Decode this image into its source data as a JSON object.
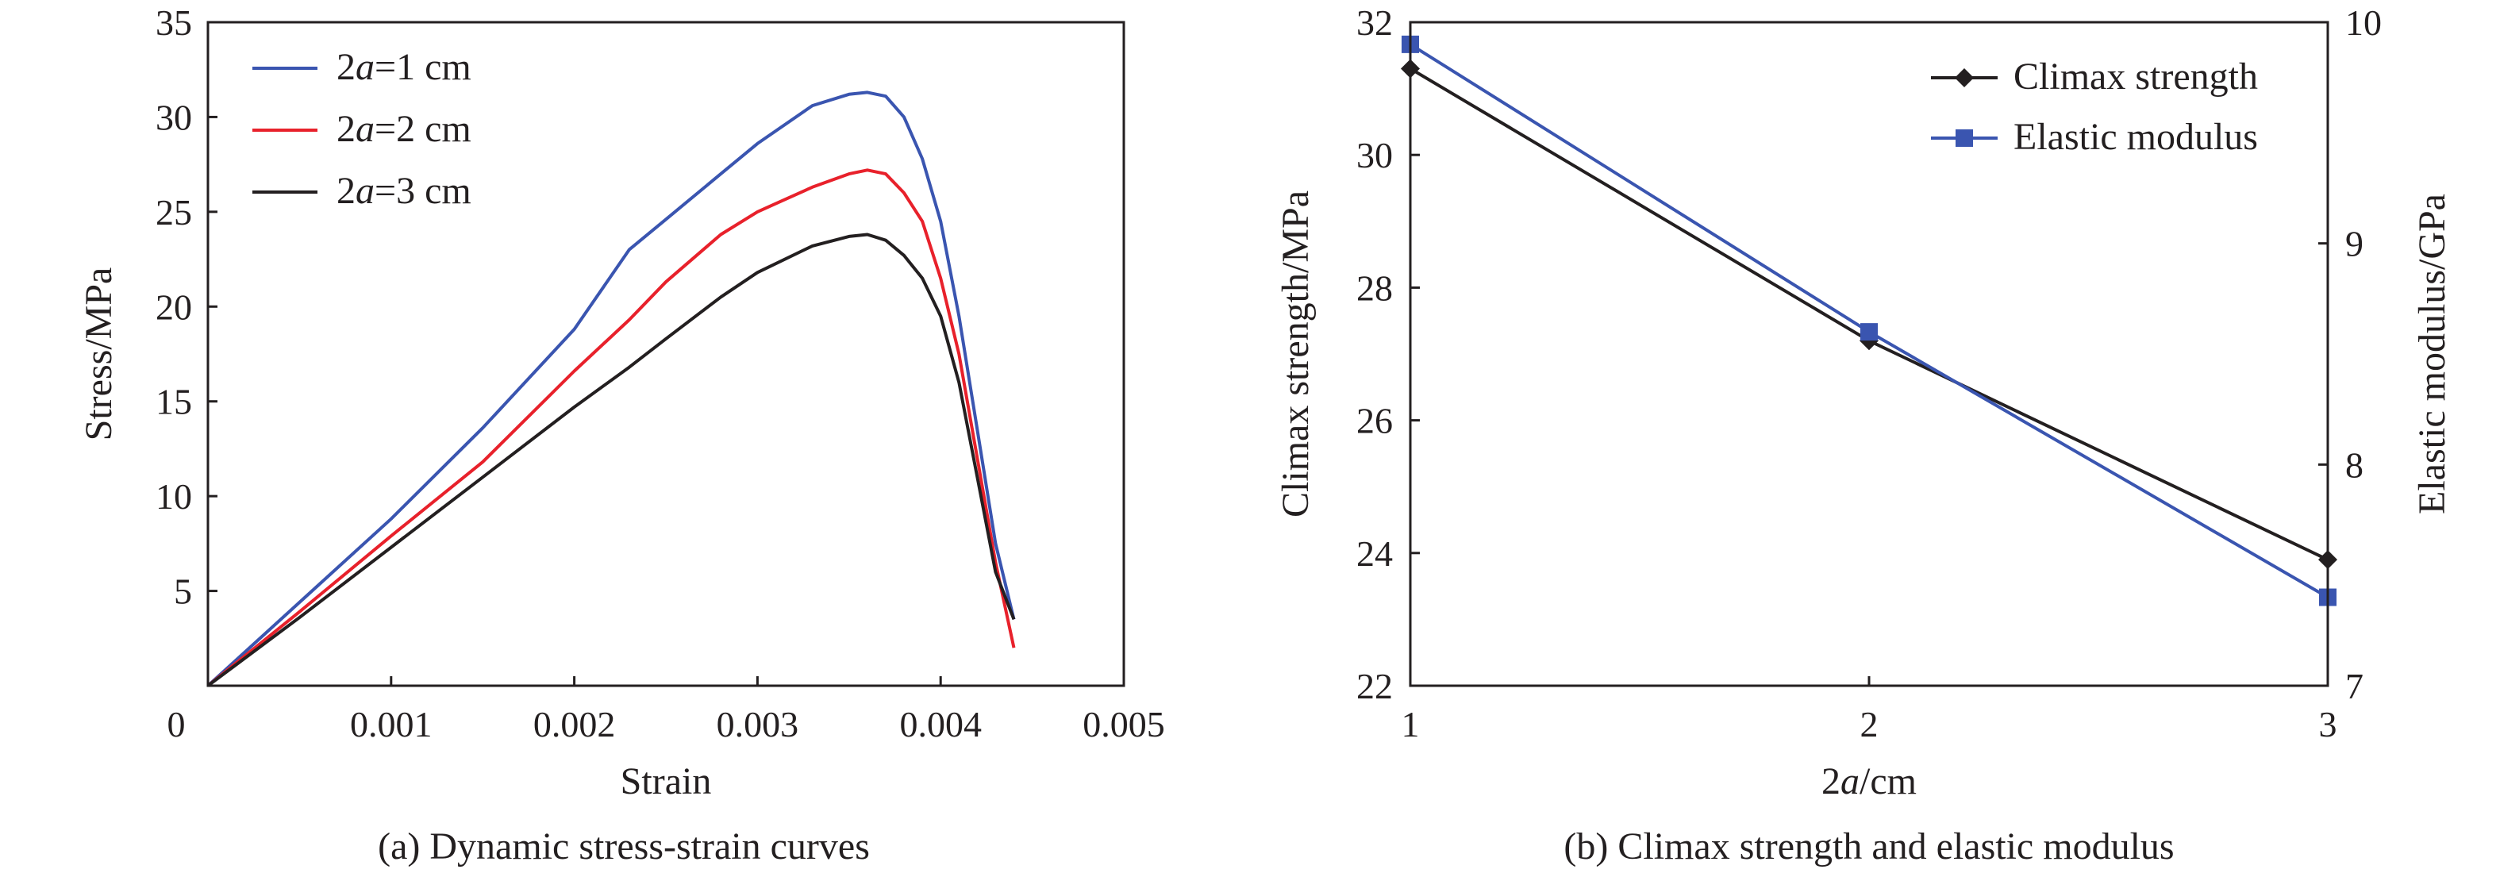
{
  "chart_data": [
    {
      "id": "a",
      "type": "line",
      "caption": "(a) Dynamic stress-strain curves",
      "xlabel": "Strain",
      "ylabel": "Stress/MPa",
      "xlim": [
        0,
        0.005
      ],
      "ylim": [
        0,
        35
      ],
      "xticks": [
        "0",
        "0.001",
        "0.002",
        "0.003",
        "0.004",
        "0.005"
      ],
      "yticks": [
        "5",
        "10",
        "15",
        "20",
        "25",
        "30",
        "35"
      ],
      "legend_position": "top-left",
      "series": [
        {
          "name": "2a=1 cm",
          "name_parts": [
            "2",
            "a",
            "=1 cm"
          ],
          "color": "#3a55b0",
          "x": [
            0,
            0.0005,
            0.001,
            0.0015,
            0.002,
            0.0023,
            0.0025,
            0.0028,
            0.003,
            0.0033,
            0.0035,
            0.0036,
            0.0037,
            0.0038,
            0.0039,
            0.004,
            0.0041,
            0.0042,
            0.0043,
            0.0044
          ],
          "y": [
            0,
            4.4,
            8.8,
            13.6,
            18.8,
            23.0,
            24.6,
            27.0,
            28.6,
            30.6,
            31.2,
            31.3,
            31.1,
            30.0,
            27.8,
            24.5,
            19.5,
            13.5,
            7.5,
            3.5
          ]
        },
        {
          "name": "2a=2 cm",
          "name_parts": [
            "2",
            "a",
            "=2 cm"
          ],
          "color": "#e8212b",
          "x": [
            0,
            0.0005,
            0.001,
            0.0015,
            0.002,
            0.0023,
            0.0025,
            0.0028,
            0.003,
            0.0033,
            0.0035,
            0.0036,
            0.0037,
            0.0038,
            0.0039,
            0.004,
            0.0041,
            0.0042,
            0.0043,
            0.0044
          ],
          "y": [
            0,
            3.9,
            7.9,
            11.8,
            16.6,
            19.3,
            21.3,
            23.8,
            25.0,
            26.3,
            27.0,
            27.2,
            27.0,
            26.0,
            24.5,
            21.5,
            17.5,
            12.0,
            6.5,
            2.0
          ]
        },
        {
          "name": "2a=3 cm",
          "name_parts": [
            "2",
            "a",
            "=3 cm"
          ],
          "color": "#231f20",
          "x": [
            0,
            0.0005,
            0.001,
            0.0015,
            0.002,
            0.0023,
            0.0025,
            0.0028,
            0.003,
            0.0033,
            0.0035,
            0.0036,
            0.0037,
            0.0038,
            0.0039,
            0.004,
            0.0041,
            0.0042,
            0.0043,
            0.0044
          ],
          "y": [
            0,
            3.6,
            7.3,
            11.0,
            14.7,
            16.8,
            18.3,
            20.5,
            21.8,
            23.2,
            23.7,
            23.8,
            23.5,
            22.7,
            21.5,
            19.5,
            16.0,
            11.0,
            6.0,
            3.5
          ]
        }
      ]
    },
    {
      "id": "b",
      "type": "line",
      "caption": "(b) Climax strength and elastic modulus",
      "xlabel": "2a/cm",
      "xlabel_parts": [
        "2",
        "a",
        "/cm"
      ],
      "ylabel_left": "Climax strength/MPa",
      "ylabel_right": "Elastic modulus/GPa",
      "xlim": [
        1,
        3
      ],
      "ylim_left": [
        22,
        32
      ],
      "ylim_right": [
        7,
        10
      ],
      "xticks": [
        "1",
        "2",
        "3"
      ],
      "yticks_left": [
        "22",
        "24",
        "26",
        "28",
        "30",
        "32"
      ],
      "yticks_right": [
        "7",
        "8",
        "9",
        "10"
      ],
      "legend_position": "top-right",
      "series": [
        {
          "name": "Climax strength",
          "axis": "left",
          "marker": "diamond",
          "color": "#231f20",
          "x": [
            1,
            2,
            3
          ],
          "y": [
            31.3,
            27.2,
            23.9
          ]
        },
        {
          "name": "Elastic modulus",
          "axis": "right",
          "marker": "square",
          "color": "#3a55b0",
          "x": [
            1,
            2,
            3
          ],
          "y": [
            9.9,
            8.6,
            7.4
          ]
        }
      ]
    }
  ]
}
